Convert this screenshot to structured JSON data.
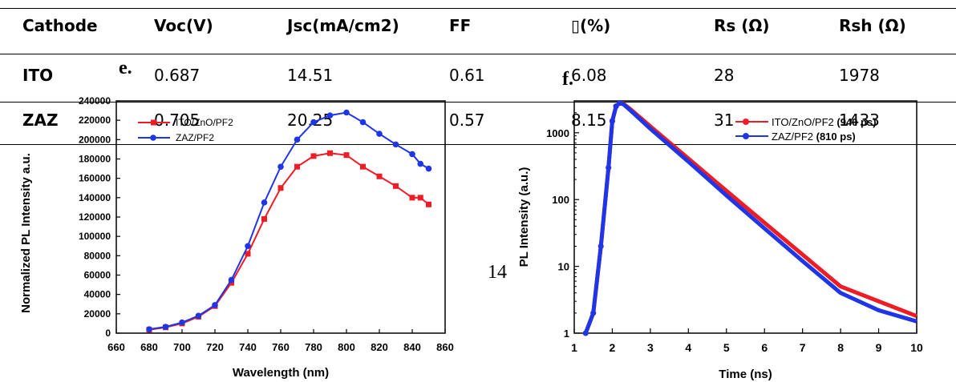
{
  "table": {
    "headers": [
      "Cathode",
      "Voc(V)",
      "Jsc(mA/cm2)",
      "FF",
      "▯(%)",
      "Rs (Ω)",
      "Rsh (Ω)"
    ],
    "rows": [
      [
        "ITO",
        "0.687",
        "14.51",
        "0.61",
        "6.08",
        "28",
        "1978"
      ],
      [
        "ZAZ",
        "0.705",
        "20.25",
        "0.57",
        "8.15",
        "31",
        "1433"
      ]
    ]
  },
  "panels": {
    "left": "e.",
    "right": "f."
  },
  "page_number": "14",
  "colors": {
    "red": "#ee1c24",
    "blue": "#1f35e8"
  },
  "chart_data": [
    {
      "type": "line",
      "xlabel": "Wavelength (nm)",
      "ylabel": "Normalized PL Intensity a.u.",
      "xlim": [
        660,
        860
      ],
      "ylim": [
        0,
        240000
      ],
      "xticks": [
        "660",
        "680",
        "700",
        "720",
        "740",
        "760",
        "780",
        "800",
        "820",
        "840",
        "860"
      ],
      "yticks": [
        "0",
        "20000",
        "40000",
        "60000",
        "80000",
        "100000",
        "120000",
        "140000",
        "160000",
        "180000",
        "200000",
        "220000",
        "240000"
      ],
      "legend": [
        "ITO/ZnO/PF2",
        "ZAZ/PF2"
      ],
      "legend_position": "top-left",
      "series": [
        {
          "name": "ITO/ZnO/PF2",
          "color": "#ee1c24",
          "marker": "square",
          "x": [
            680,
            690,
            700,
            710,
            720,
            730,
            740,
            750,
            760,
            770,
            780,
            790,
            800,
            810,
            820,
            830,
            840,
            845,
            850
          ],
          "y": [
            3500,
            6000,
            10000,
            17000,
            28000,
            52000,
            82000,
            118000,
            150000,
            172000,
            183000,
            186000,
            184000,
            172000,
            162000,
            152000,
            140000,
            140000,
            133000
          ]
        },
        {
          "name": "ZAZ/PF2",
          "color": "#1f35e8",
          "marker": "circle",
          "x": [
            680,
            690,
            700,
            710,
            720,
            730,
            740,
            750,
            760,
            770,
            780,
            790,
            800,
            810,
            820,
            830,
            840,
            845,
            850
          ],
          "y": [
            4000,
            6500,
            11000,
            18000,
            29000,
            55000,
            90000,
            135000,
            172000,
            200000,
            218000,
            225000,
            228000,
            218000,
            206000,
            195000,
            185000,
            175000,
            170000
          ]
        }
      ]
    },
    {
      "type": "line",
      "xlabel": "Time (ns)",
      "ylabel": "PL Intensity (a.u.)",
      "xlim": [
        1,
        10
      ],
      "ylim": [
        1,
        3000
      ],
      "yscale": "log",
      "xticks": [
        "1",
        "2",
        "3",
        "4",
        "5",
        "6",
        "7",
        "8",
        "9",
        "10"
      ],
      "yticks": [
        "1",
        "10",
        "100",
        "1000"
      ],
      "legend": [
        "ITO/ZnO/PF2 (940 ps)",
        "ZAZ/PF2 (810 ps)"
      ],
      "legend_position": "top-right",
      "series": [
        {
          "name": "ITO/ZnO/PF2",
          "lifetime": "(940 ps)",
          "color": "#ee1c24",
          "x": [
            1.3,
            1.5,
            1.7,
            1.9,
            2.0,
            2.1,
            2.2,
            2.3,
            2.5,
            3,
            4,
            5,
            6,
            7,
            8,
            9,
            10
          ],
          "y": [
            1,
            2,
            20,
            300,
            1500,
            2500,
            2800,
            2700,
            2200,
            1250,
            410,
            135,
            45,
            15,
            5,
            3,
            1.8
          ]
        },
        {
          "name": "ZAZ/PF2",
          "lifetime": "(810 ps)",
          "color": "#1f35e8",
          "x": [
            1.3,
            1.5,
            1.7,
            1.9,
            2.0,
            2.1,
            2.2,
            2.3,
            2.5,
            3,
            4,
            5,
            6,
            7,
            8,
            9,
            10
          ],
          "y": [
            1,
            2,
            20,
            300,
            1500,
            2500,
            2800,
            2650,
            2100,
            1150,
            370,
            115,
            37,
            12,
            4,
            2.2,
            1.5
          ]
        }
      ]
    }
  ]
}
